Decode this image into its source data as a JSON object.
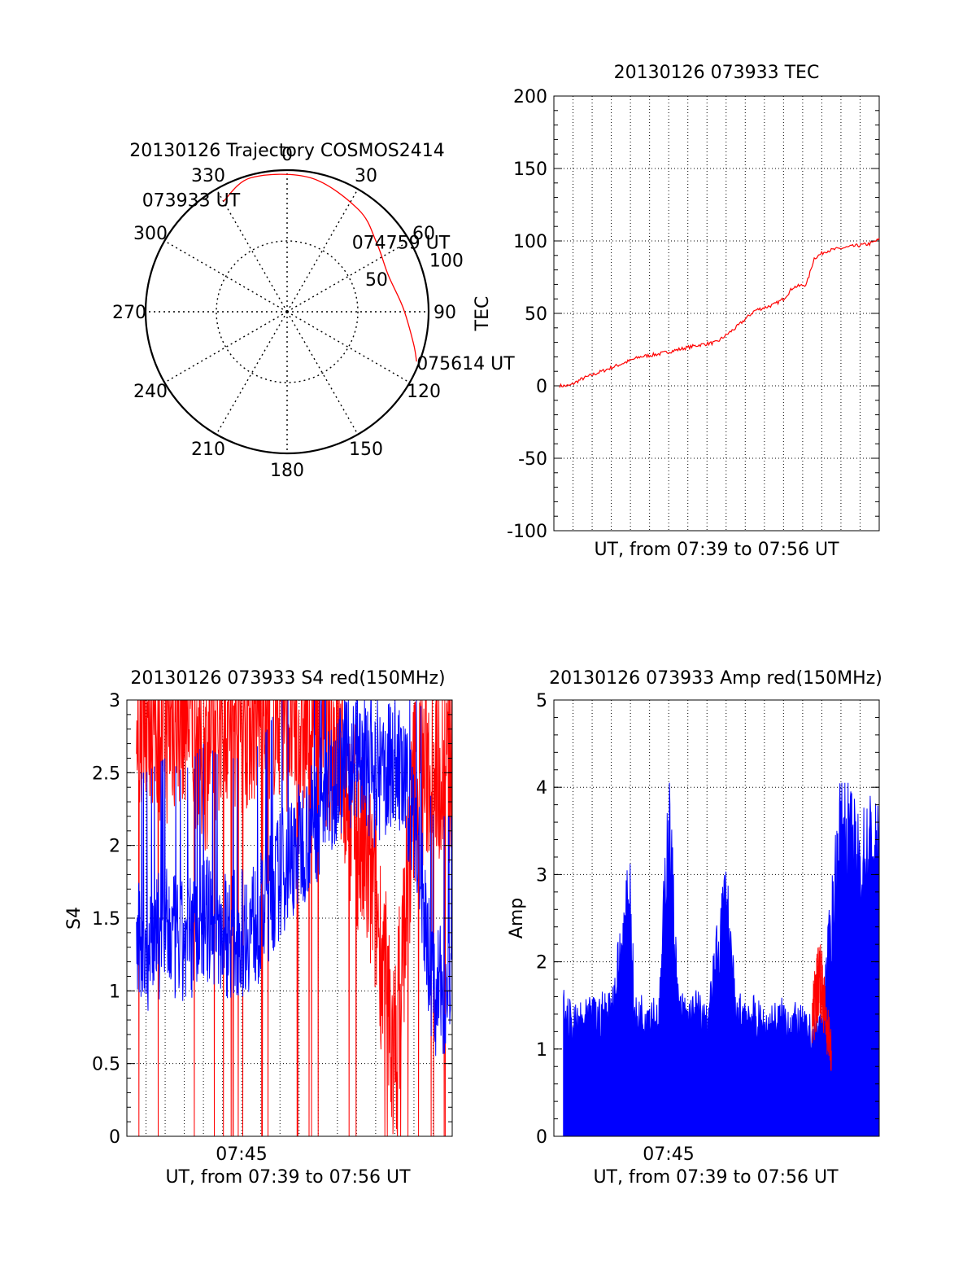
{
  "colors": {
    "background": "#ffffff",
    "axes": "#000000",
    "primary": "#ff0000",
    "secondary": "#0000ff"
  },
  "chart_data": [
    {
      "panel": "polar",
      "type": "scatter",
      "title": "20130126 Trajectory COSMOS2414",
      "azimuth_labels": [
        "0",
        "30",
        "60",
        "90",
        "120",
        "150",
        "180",
        "210",
        "240",
        "270",
        "300",
        "330"
      ],
      "elevation_rings": [
        0,
        50,
        100
      ],
      "ring_labels": [
        "50",
        "100"
      ],
      "trajectory": {
        "points": [
          {
            "az": 330,
            "el": 10
          },
          {
            "az": 345,
            "el": 2
          },
          {
            "az": 10,
            "el": 4
          },
          {
            "az": 35,
            "el": 12
          },
          {
            "az": 52,
            "el": 20
          },
          {
            "az": 70,
            "el": 24
          },
          {
            "az": 88,
            "el": 18
          },
          {
            "az": 104,
            "el": 8
          },
          {
            "az": 111,
            "el": 2
          }
        ],
        "labels": [
          {
            "text": "073933 UT",
            "az": 330,
            "el": 10
          },
          {
            "text": "074759 UT",
            "az": 52,
            "el": 20
          },
          {
            "text": "075614 UT",
            "az": 111,
            "el": 2
          }
        ]
      },
      "side_label": "TEC"
    },
    {
      "panel": "tec",
      "type": "line",
      "title": "20130126 073933 TEC",
      "xlabel": "UT, from 07:39 to 07:56 UT",
      "ylabel": "",
      "xlim": [
        0,
        17
      ],
      "ylim": [
        -100,
        200
      ],
      "yticks": [
        -100,
        -50,
        0,
        50,
        100,
        150,
        200
      ],
      "x": [
        0.3,
        0.8,
        1.5,
        2.5,
        3.5,
        4.5,
        5.5,
        6.5,
        7.5,
        8.5,
        9.5,
        10.5,
        11.5,
        12.0,
        12.5,
        13.2,
        13.6,
        14.2,
        15.5,
        16.5,
        17
      ],
      "series": [
        {
          "color": "#ff0000",
          "values": [
            0,
            0,
            5,
            10,
            15,
            20,
            22,
            25,
            28,
            30,
            40,
            52,
            56,
            60,
            68,
            70,
            88,
            93,
            96,
            98,
            101
          ]
        }
      ]
    },
    {
      "panel": "s4",
      "type": "line",
      "title": "20130126 073933 S4 red(150MHz)",
      "xlabel": "UT, from 07:39 to 07:56 UT",
      "ylabel": "S4",
      "xlim": [
        0,
        17
      ],
      "ylim": [
        0,
        3
      ],
      "yticks": [
        "0",
        "0.5",
        "1",
        "1.5",
        "2",
        "2.5",
        "3"
      ],
      "xtick_label": "07:45",
      "x": [
        0,
        1,
        2,
        3,
        4,
        5,
        6,
        7,
        8,
        9,
        10,
        11,
        12,
        13,
        14,
        15,
        16,
        17
      ],
      "series": [
        {
          "color": "#ff0000",
          "values": [
            2.9,
            3.0,
            2.8,
            3.0,
            2.6,
            3.0,
            2.9,
            3.0,
            3.0,
            2.8,
            2.9,
            2.7,
            2.1,
            1.6,
            0.5,
            2.4,
            2.6,
            2.5
          ]
        },
        {
          "color": "#0000ff",
          "values": [
            1.3,
            1.3,
            1.4,
            1.3,
            1.5,
            1.4,
            1.4,
            1.5,
            1.8,
            2.0,
            2.2,
            2.5,
            2.6,
            2.4,
            2.6,
            2.2,
            1.0,
            1.0
          ]
        }
      ]
    },
    {
      "panel": "amp",
      "type": "bar",
      "title": "20130126 073933 Amp red(150MHz)",
      "xlabel": "UT, from 07:39 to 07:56 UT",
      "ylabel": "Amp",
      "xlim": [
        0,
        17
      ],
      "ylim": [
        0,
        5
      ],
      "yticks": [
        "0",
        "1",
        "2",
        "3",
        "4",
        "5"
      ],
      "xtick_label": "07:45",
      "x": [
        0.5,
        1,
        2,
        3,
        4,
        4.2,
        5,
        5.5,
        6,
        6.5,
        7,
        7.5,
        8,
        9,
        9.5,
        10,
        11,
        12,
        13,
        13.5,
        14,
        15,
        16,
        16.5,
        17
      ],
      "series": [
        {
          "color": "#0000ff",
          "values": [
            1.5,
            1.3,
            1.4,
            1.5,
            2.9,
            1.4,
            1.5,
            1.4,
            3.9,
            1.5,
            1.4,
            1.5,
            1.3,
            2.9,
            1.4,
            1.5,
            1.3,
            1.4,
            1.3,
            1.2,
            1.3,
            3.8,
            3.2,
            3.5,
            3.3
          ]
        },
        {
          "color": "#ff0000",
          "x": [
            13.5,
            13.7,
            13.9,
            14.1,
            14.3,
            14.5
          ],
          "values": [
            1.4,
            1.7,
            2.0,
            1.6,
            1.3,
            1.0
          ]
        }
      ]
    }
  ]
}
